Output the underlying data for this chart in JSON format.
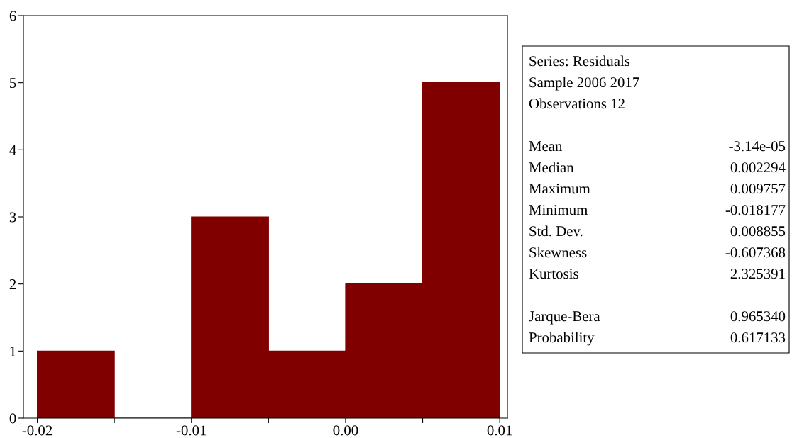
{
  "chart_data": {
    "type": "histogram",
    "bins": [
      -0.02,
      -0.015,
      -0.01,
      -0.005,
      0.0,
      0.005,
      0.01
    ],
    "values": [
      1,
      0,
      3,
      1,
      2,
      5
    ],
    "color": "#800000",
    "xlim": [
      -0.0209,
      0.0105
    ],
    "xticks": [
      {
        "value": -0.02,
        "label": "-0.02"
      },
      {
        "value": -0.015,
        "label": null
      },
      {
        "value": -0.01,
        "label": "-0.01"
      },
      {
        "value": -0.005,
        "label": null
      },
      {
        "value": 0.0,
        "label": "0.00"
      },
      {
        "value": 0.005,
        "label": null
      },
      {
        "value": 0.01,
        "label": "0.01"
      }
    ],
    "ylim": [
      0,
      6
    ],
    "yticks": [
      0,
      1,
      2,
      3,
      4,
      5,
      6
    ],
    "grid": false,
    "legend": false,
    "annotations": [
      "Series: Residuals",
      "Sample 2006 2017",
      "Observations 12",
      "Mean",
      "-3.14e-05",
      "Median",
      "0.002294",
      "Maximum",
      "0.009757",
      "Minimum",
      "-0.018177",
      "Std. Dev.",
      "0.008855",
      "Skewness",
      "-0.607368",
      "Kurtosis",
      "2.325391",
      "Jarque-Bera",
      "0.965340",
      "Probability",
      "0.617133"
    ]
  }
}
